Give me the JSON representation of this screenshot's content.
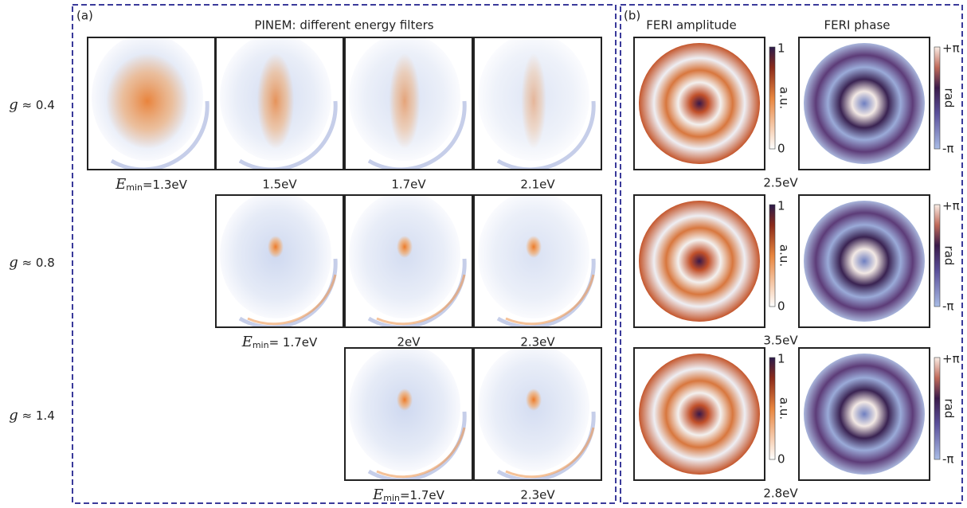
{
  "panel_a": {
    "label": "(a)",
    "title": "PINEM: different energy filters",
    "rows": [
      {
        "g_label": {
          "symbol": "g",
          "text": "≈ 0.4"
        },
        "captions": [
          {
            "symbol": "E",
            "subscript": "min",
            "text": "=1.3eV"
          },
          "1.5eV",
          "1.7eV",
          "2.1eV"
        ]
      },
      {
        "g_label": {
          "symbol": "g",
          "text": "≈ 0.8"
        },
        "captions": [
          {
            "symbol": "E",
            "subscript": "min",
            "text": "= 1.7eV"
          },
          "2eV",
          "2.3eV"
        ]
      },
      {
        "g_label": {
          "symbol": "g",
          "text": "≈ 1.4"
        },
        "captions": [
          {
            "symbol": "E",
            "subscript": "min",
            "text": "=1.7eV"
          },
          "2.3eV"
        ]
      }
    ]
  },
  "panel_b": {
    "label": "(b)",
    "amplitude_title": "FERI amplitude",
    "phase_title": "FERI phase",
    "amplitude_scale": {
      "max": "1",
      "unit": "a.u.",
      "min": "0"
    },
    "phase_scale": {
      "max": "+π",
      "unit": "rad",
      "min": "-π"
    },
    "rows": [
      {
        "energy": "2.5eV"
      },
      {
        "energy": "3.5eV"
      },
      {
        "energy": "2.8eV"
      }
    ]
  }
}
